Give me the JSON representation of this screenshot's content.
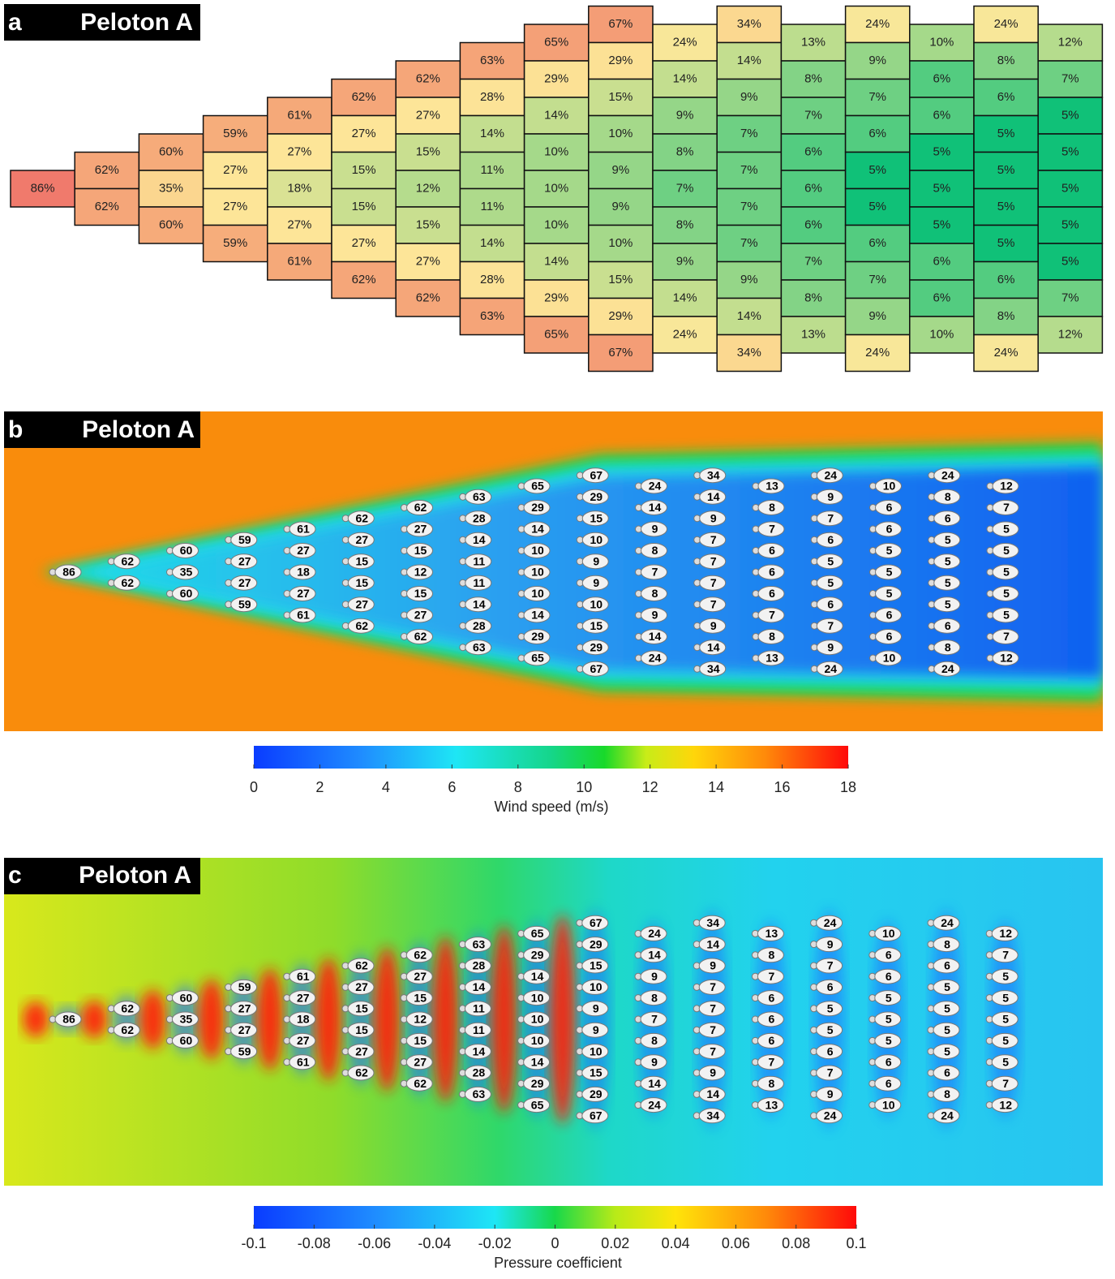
{
  "chart_data": [
    {
      "type": "heatmap",
      "panel": "a",
      "title": "Peloton A",
      "colors": [
        "#10c178",
        "#a6d98a",
        "#fde89a",
        "#f8bf80",
        "#f07a6c"
      ],
      "columns": [
        {
          "values": [
            86
          ],
          "value_labels": [
            "86%"
          ]
        },
        {
          "values": [
            62,
            62
          ],
          "value_labels": [
            "62%",
            "62%"
          ]
        },
        {
          "values": [
            60,
            35,
            60
          ],
          "value_labels": [
            "60%",
            "35%",
            "60%"
          ]
        },
        {
          "values": [
            59,
            27,
            27,
            59
          ],
          "value_labels": [
            "59%",
            "27%",
            "27%",
            "59%"
          ]
        },
        {
          "values": [
            61,
            27,
            18,
            27,
            61
          ],
          "value_labels": [
            "61%",
            "27%",
            "18%",
            "27%",
            "61%"
          ]
        },
        {
          "values": [
            62,
            27,
            15,
            15,
            27,
            62
          ],
          "value_labels": [
            "62%",
            "27%",
            "15%",
            "15%",
            "27%",
            "62%"
          ]
        },
        {
          "values": [
            62,
            27,
            15,
            12,
            15,
            27,
            62
          ],
          "value_labels": [
            "62%",
            "27%",
            "15%",
            "12%",
            "15%",
            "27%",
            "62%"
          ]
        },
        {
          "values": [
            63,
            28,
            14,
            11,
            11,
            14,
            28,
            63
          ],
          "value_labels": [
            "63%",
            "28%",
            "14%",
            "11%",
            "11%",
            "14%",
            "28%",
            "63%"
          ]
        },
        {
          "values": [
            65,
            29,
            14,
            10,
            10,
            10,
            14,
            29,
            65
          ],
          "value_labels": [
            "65%",
            "29%",
            "14%",
            "10%",
            "10%",
            "10%",
            "14%",
            "29%",
            "65%"
          ]
        },
        {
          "values": [
            67,
            29,
            15,
            10,
            9,
            9,
            10,
            15,
            29,
            67
          ],
          "value_labels": [
            "67%",
            "29%",
            "15%",
            "10%",
            "9%",
            "9%",
            "10%",
            "15%",
            "29%",
            "67%"
          ]
        },
        {
          "values": [
            24,
            14,
            9,
            8,
            7,
            8,
            9,
            14,
            24
          ],
          "value_labels": [
            "24%",
            "14%",
            "9%",
            "8%",
            "7%",
            "8%",
            "9%",
            "14%",
            "24%"
          ]
        },
        {
          "values": [
            34,
            14,
            9,
            7,
            7,
            7,
            7,
            9,
            14,
            34
          ],
          "value_labels": [
            "34%",
            "14%",
            "9%",
            "7%",
            "7%",
            "7%",
            "7%",
            "9%",
            "14%",
            "34%"
          ]
        },
        {
          "values": [
            13,
            8,
            7,
            6,
            6,
            6,
            7,
            8,
            13
          ],
          "value_labels": [
            "13%",
            "8%",
            "7%",
            "6%",
            "6%",
            "6%",
            "7%",
            "8%",
            "13%"
          ]
        },
        {
          "values": [
            24,
            9,
            7,
            6,
            5,
            5,
            6,
            7,
            9,
            24
          ],
          "value_labels": [
            "24%",
            "9%",
            "7%",
            "6%",
            "5%",
            "5%",
            "6%",
            "7%",
            "9%",
            "24%"
          ]
        },
        {
          "values": [
            10,
            6,
            6,
            5,
            5,
            5,
            6,
            6,
            10
          ],
          "value_labels": [
            "10%",
            "6%",
            "6%",
            "5%",
            "5%",
            "5%",
            "6%",
            "6%",
            "10%"
          ]
        },
        {
          "values": [
            24,
            8,
            6,
            5,
            5,
            5,
            5,
            6,
            8,
            24
          ],
          "value_labels": [
            "24%",
            "8%",
            "6%",
            "5%",
            "5%",
            "5%",
            "5%",
            "6%",
            "8%",
            "24%"
          ]
        },
        {
          "values": [
            12,
            7,
            5,
            5,
            5,
            5,
            5,
            7,
            12
          ],
          "value_labels": [
            "12%",
            "7%",
            "5%",
            "5%",
            "5%",
            "5%",
            "5%",
            "7%",
            "12%"
          ]
        }
      ]
    },
    {
      "type": "field",
      "panel": "b",
      "title": "Peloton A",
      "colorbar": {
        "label": "Wind speed (m/s)",
        "lim": [
          0,
          18
        ],
        "ticks": [
          0,
          2,
          4,
          6,
          8,
          10,
          12,
          14,
          16,
          18
        ]
      }
    },
    {
      "type": "field",
      "panel": "c",
      "title": "Peloton A",
      "colorbar": {
        "label": "Pressure coefficient",
        "lim": [
          -0.1,
          0.1
        ],
        "ticks": [
          -0.1,
          -0.08,
          -0.06,
          -0.04,
          -0.02,
          0,
          0.02,
          0.04,
          0.06,
          0.08,
          0.1
        ]
      }
    }
  ]
}
